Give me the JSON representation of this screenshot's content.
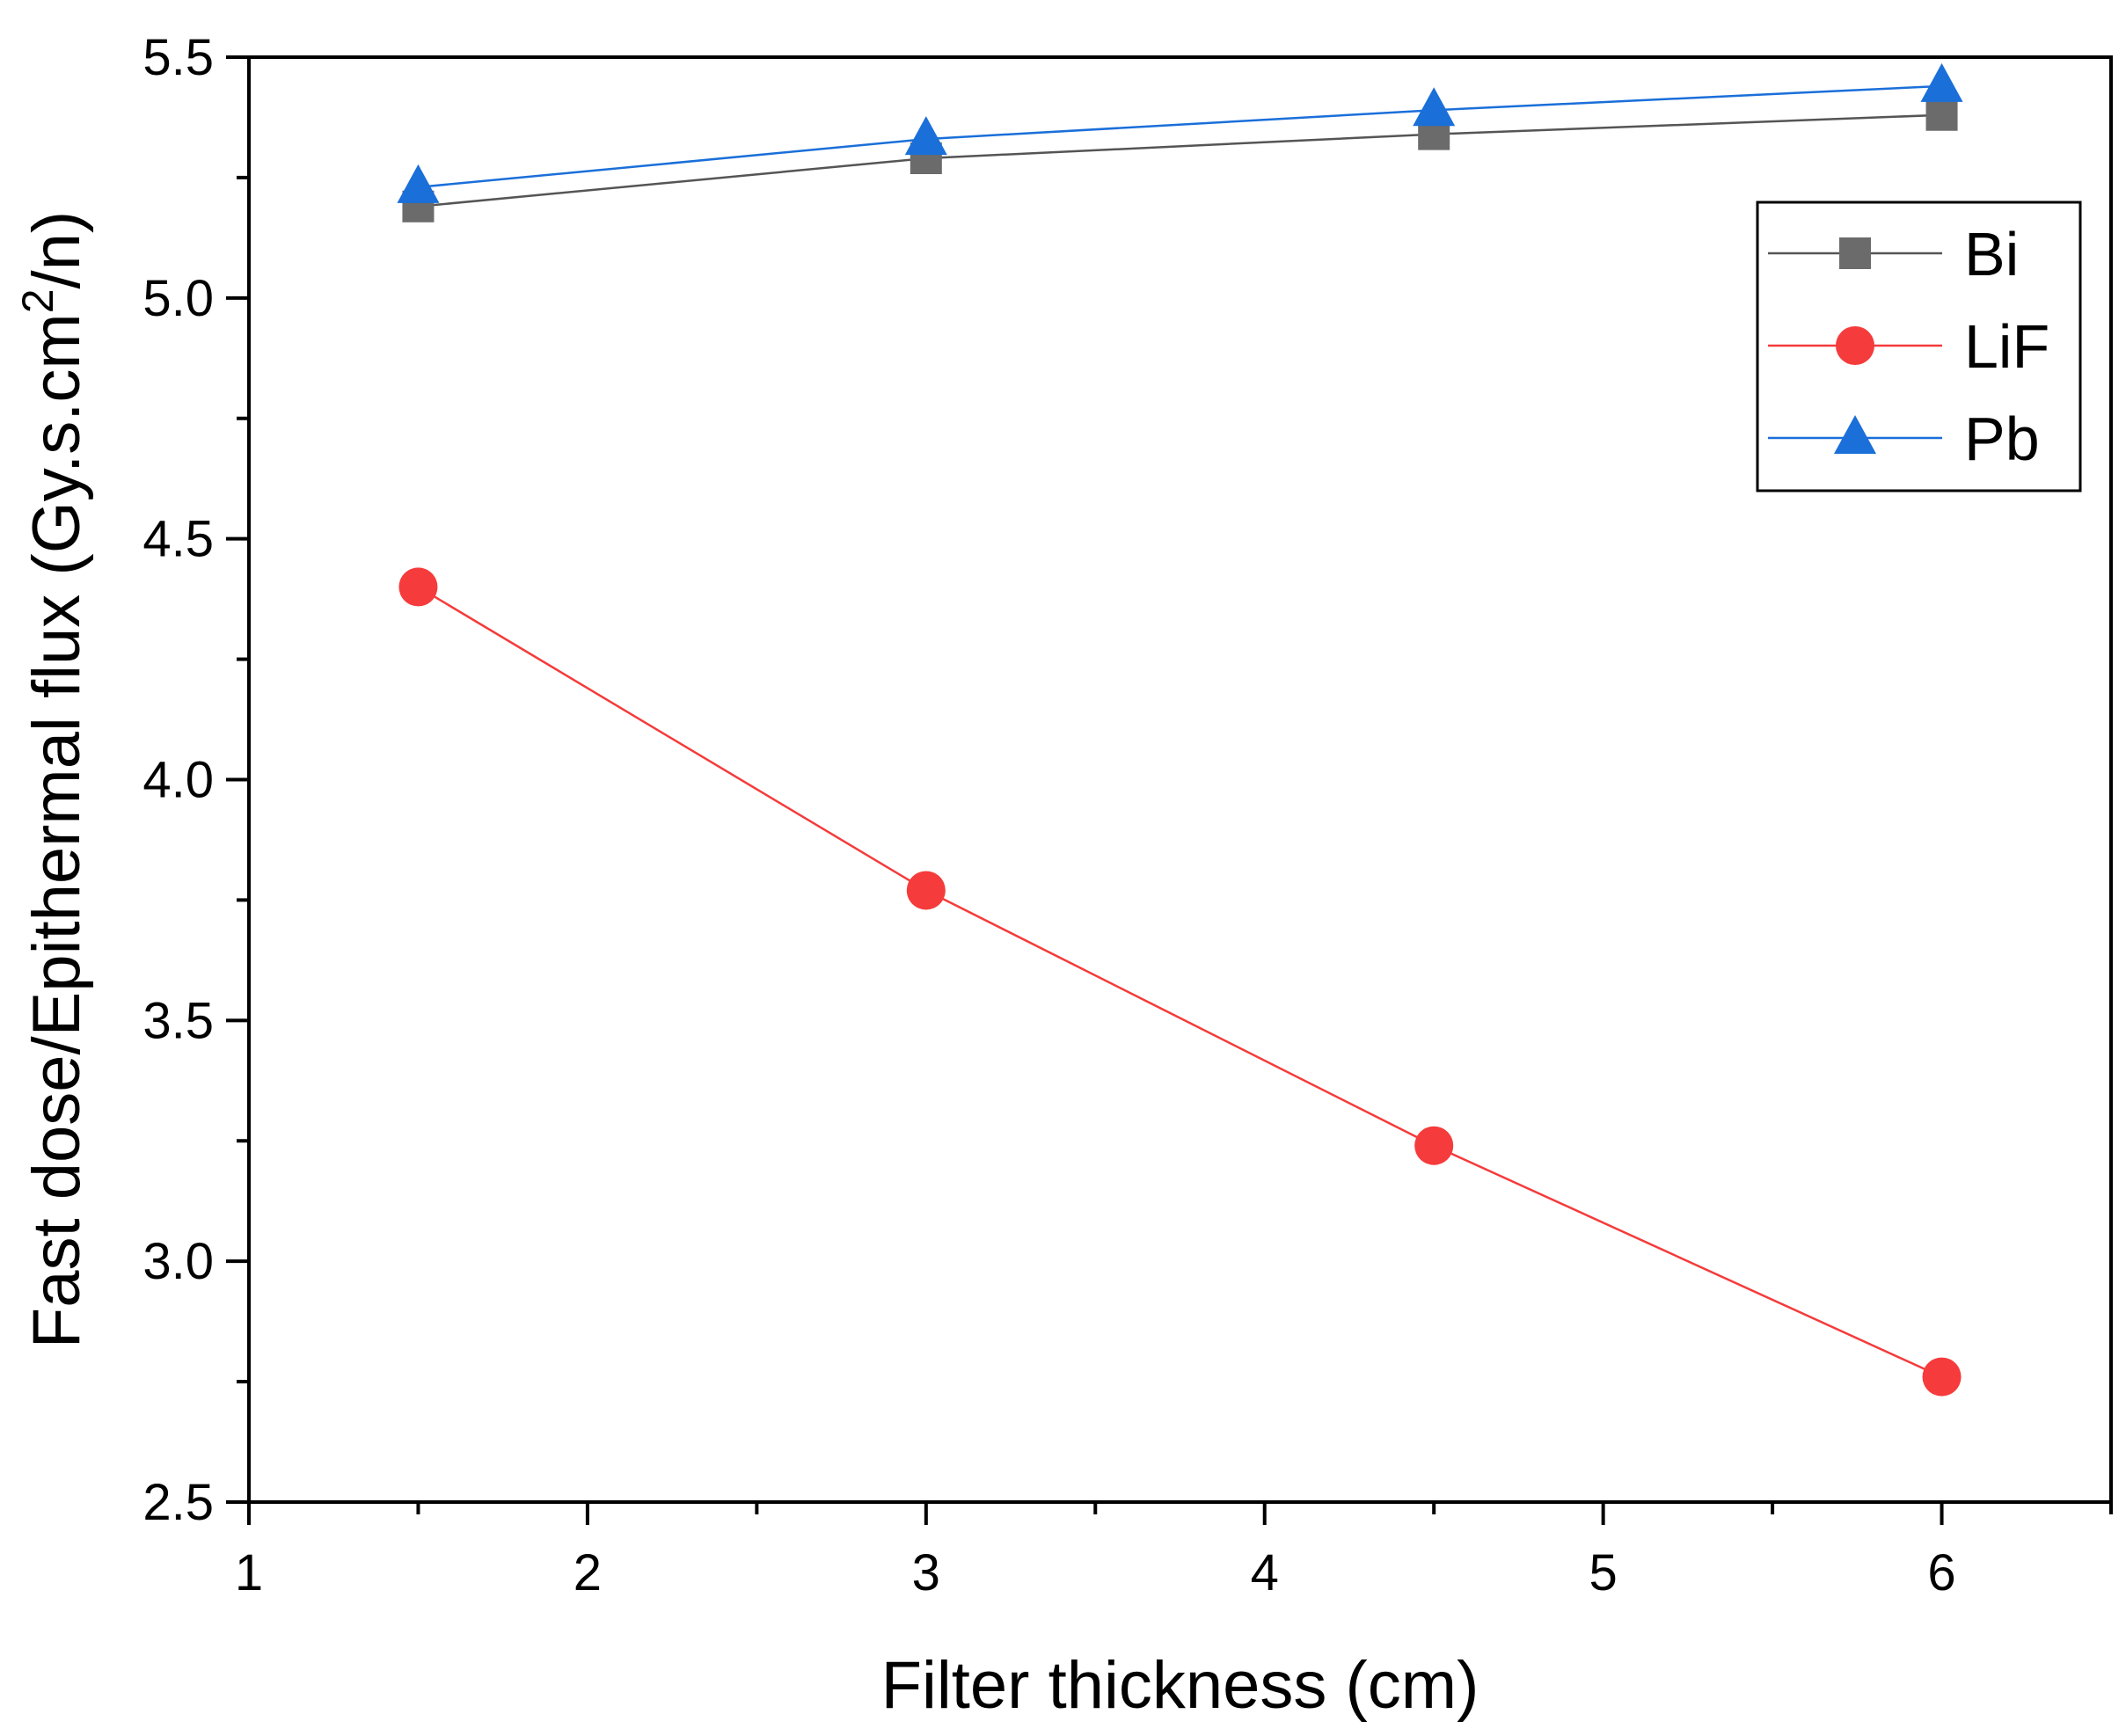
{
  "chart_data": {
    "type": "line",
    "title": "",
    "xlabel": "Filter thickness (cm)",
    "ylabel": "Fast dose/Epithermal flux (Gy.s.cm",
    "ylabel_sup": "2",
    "ylabel_tail": "/n)",
    "xlim": [
      1,
      6.5
    ],
    "ylim": [
      2.5,
      5.5
    ],
    "xticks": [
      1,
      2,
      3,
      4,
      5,
      6
    ],
    "xtick_labels": [
      "1",
      "2",
      "3",
      "4",
      "5",
      "6"
    ],
    "yticks": [
      2.5,
      3.0,
      3.5,
      4.0,
      4.5,
      5.0,
      5.5
    ],
    "ytick_labels": [
      "2.5",
      "3.0",
      "3.5",
      "4.0",
      "4.5",
      "5.0",
      "5.5"
    ],
    "grid": false,
    "legend_position": "top-right",
    "x": [
      1.5,
      3,
      4.5,
      6
    ],
    "series": [
      {
        "name": "Bi",
        "marker": "square",
        "color": "#6b6b6b",
        "line_color": "#555555",
        "values": [
          5.19,
          5.29,
          5.34,
          5.38
        ]
      },
      {
        "name": "LiF",
        "marker": "circle",
        "color": "#f53b3b",
        "line_color": "#f53b3b",
        "values": [
          4.4,
          3.77,
          3.24,
          2.76
        ]
      },
      {
        "name": "Pb",
        "marker": "triangle",
        "color": "#1a6fd9",
        "line_color": "#1a6fd9",
        "values": [
          5.23,
          5.33,
          5.39,
          5.44
        ]
      }
    ]
  }
}
